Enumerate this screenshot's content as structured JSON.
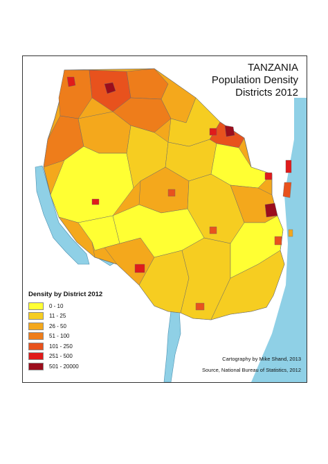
{
  "map": {
    "title_line1": "TANZANIA",
    "title_line2": "Population Density",
    "title_line3": "Districts 2012",
    "legend_title": "Density by District 2012",
    "legend": [
      {
        "label": "0 - 10",
        "color": "#ffff33"
      },
      {
        "label": "11 - 25",
        "color": "#f6cd21"
      },
      {
        "label": "26 - 50",
        "color": "#f4a81c"
      },
      {
        "label": "51 - 100",
        "color": "#ee7d1b"
      },
      {
        "label": "101 - 250",
        "color": "#e8521d"
      },
      {
        "label": "251 - 500",
        "color": "#e01b1b"
      },
      {
        "label": "501 - 20000",
        "color": "#9b0d1c"
      }
    ],
    "credit_line1": "Cartography by Mike Shand, 2013",
    "credit_line2": "Source, National Bureau of Statistics, 2012",
    "colors": {
      "water": "#8fd0e6",
      "border": "#555555"
    }
  }
}
